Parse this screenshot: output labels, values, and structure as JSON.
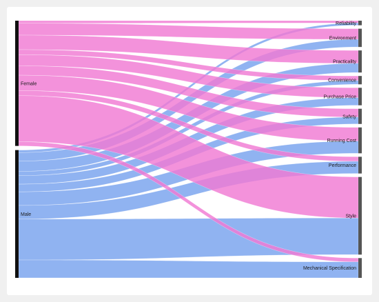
{
  "chart_data": {
    "type": "sankey",
    "colors": {
      "Female": "#f07ad3",
      "Male": "#78a2ee",
      "source_node": "#111111",
      "target_node": "#555555"
    },
    "sources": [
      {
        "key": "female",
        "label": "Female"
      },
      {
        "key": "male",
        "label": "Male"
      }
    ],
    "targets": [
      {
        "key": "reliability",
        "label": "Reliability"
      },
      {
        "key": "environment",
        "label": "Environment"
      },
      {
        "key": "practicality",
        "label": "Practicality"
      },
      {
        "key": "convenience",
        "label": "Convenience"
      },
      {
        "key": "purchase_price",
        "label": "Purchase Price"
      },
      {
        "key": "safety",
        "label": "Safety"
      },
      {
        "key": "running_cost",
        "label": "Running Cost"
      },
      {
        "key": "performance",
        "label": "Performance"
      },
      {
        "key": "style",
        "label": "Style"
      },
      {
        "key": "mechanical_specification",
        "label": "Mechanical Specification"
      }
    ],
    "flows": [
      {
        "source": "female",
        "target": "reliability",
        "value": 3
      },
      {
        "source": "male",
        "target": "reliability",
        "value": 3
      },
      {
        "source": "female",
        "target": "environment",
        "value": 14
      },
      {
        "source": "male",
        "target": "environment",
        "value": 10
      },
      {
        "source": "female",
        "target": "practicality",
        "value": 17
      },
      {
        "source": "male",
        "target": "practicality",
        "value": 12
      },
      {
        "source": "female",
        "target": "convenience",
        "value": 6
      },
      {
        "source": "male",
        "target": "convenience",
        "value": 5
      },
      {
        "source": "female",
        "target": "purchase_price",
        "value": 13
      },
      {
        "source": "male",
        "target": "purchase_price",
        "value": 10
      },
      {
        "source": "female",
        "target": "safety",
        "value": 11
      },
      {
        "source": "male",
        "target": "safety",
        "value": 9
      },
      {
        "source": "female",
        "target": "running_cost",
        "value": 18
      },
      {
        "source": "male",
        "target": "running_cost",
        "value": 16
      },
      {
        "source": "female",
        "target": "performance",
        "value": 6
      },
      {
        "source": "male",
        "target": "performance",
        "value": 16
      },
      {
        "source": "female",
        "target": "style",
        "value": 54
      },
      {
        "source": "male",
        "target": "style",
        "value": 48
      },
      {
        "source": "female",
        "target": "mechanical_specification",
        "value": 5
      },
      {
        "source": "male",
        "target": "mechanical_specification",
        "value": 21
      }
    ]
  }
}
